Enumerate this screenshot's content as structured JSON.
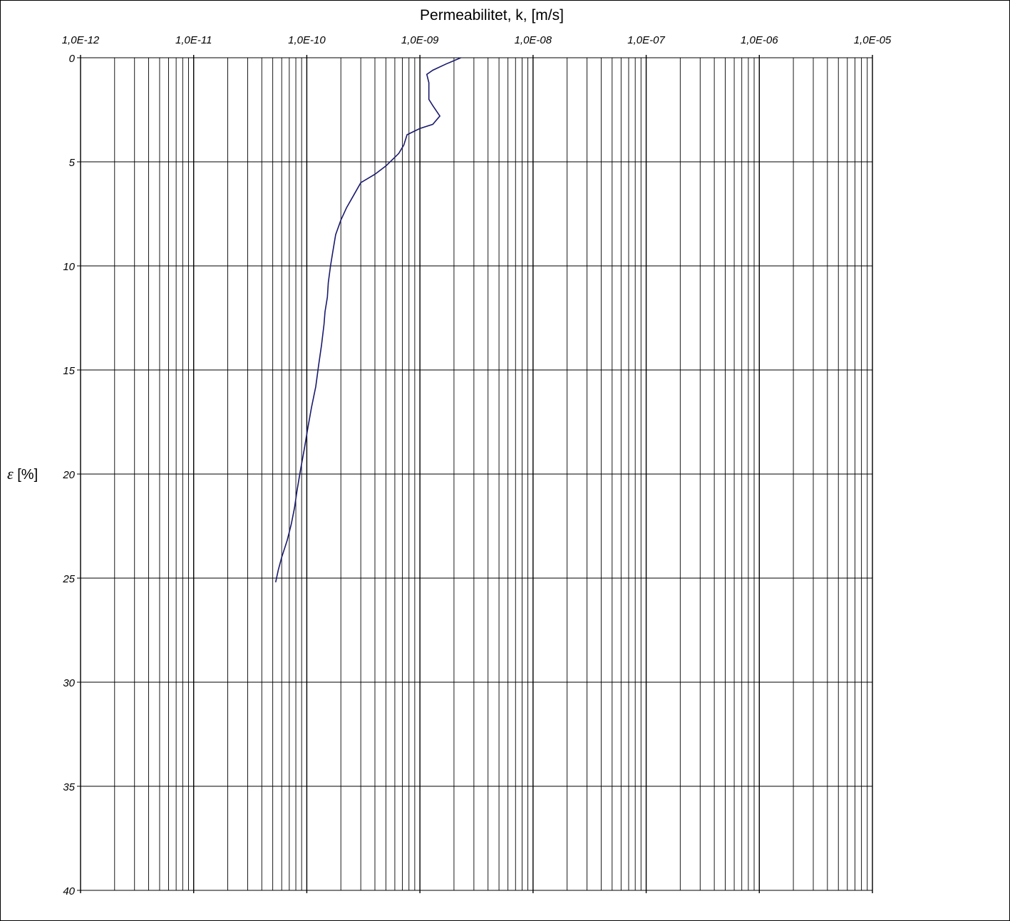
{
  "chart_data": {
    "type": "line",
    "title": "Permeabilitet, k, [m/s]",
    "ylabel_symbol": "ε",
    "ylabel_unit": "[%]",
    "x_scale": "log",
    "x_axis_position": "top",
    "y_inverted": true,
    "xlim": [
      1e-12,
      1e-05
    ],
    "ylim": [
      0,
      40
    ],
    "x_ticks": [
      {
        "value": 1e-12,
        "label": "1,0E-12"
      },
      {
        "value": 1e-11,
        "label": "1,0E-11"
      },
      {
        "value": 1e-10,
        "label": "1,0E-10"
      },
      {
        "value": 1e-09,
        "label": "1,0E-09"
      },
      {
        "value": 1e-08,
        "label": "1,0E-08"
      },
      {
        "value": 1e-07,
        "label": "1,0E-07"
      },
      {
        "value": 1e-06,
        "label": "1,0E-06"
      },
      {
        "value": 1e-05,
        "label": "1,0E-05"
      }
    ],
    "y_ticks": [
      {
        "value": 0,
        "label": "0"
      },
      {
        "value": 5,
        "label": "5"
      },
      {
        "value": 10,
        "label": "10"
      },
      {
        "value": 15,
        "label": "15"
      },
      {
        "value": 20,
        "label": "20"
      },
      {
        "value": 25,
        "label": "25"
      },
      {
        "value": 30,
        "label": "30"
      },
      {
        "value": 35,
        "label": "35"
      },
      {
        "value": 40,
        "label": "40"
      }
    ],
    "grid": true,
    "line_color": "#1a1a6e",
    "series": [
      {
        "x": [
          2.3e-09,
          1.7e-09,
          1.3e-09,
          1.15e-09,
          1.2e-09,
          1.2e-09,
          1.3e-09,
          1.5e-09,
          1.3e-09,
          1e-09,
          7.7e-10,
          7.2e-10,
          6.5e-10,
          5e-10,
          4e-10,
          3e-10,
          2.6e-10,
          2.25e-10,
          2e-10,
          1.8e-10,
          1.7e-10,
          1.62e-10,
          1.55e-10,
          1.52e-10,
          1.45e-10,
          1.42e-10,
          1.35e-10,
          1.27e-10,
          1.2e-10,
          1.1e-10,
          1.02e-10,
          9.5e-11,
          8.8e-11,
          8.2e-11,
          7.8e-11,
          7.3e-11,
          6.7e-11,
          6e-11,
          5.6e-11,
          5.3e-11
        ],
        "y": [
          0,
          0.3,
          0.6,
          0.8,
          1.2,
          2.0,
          2.3,
          2.8,
          3.2,
          3.4,
          3.7,
          4.2,
          4.6,
          5.2,
          5.6,
          6.0,
          6.6,
          7.2,
          7.8,
          8.5,
          9.3,
          10.0,
          10.8,
          11.5,
          12.2,
          12.8,
          13.8,
          14.8,
          15.8,
          16.8,
          17.8,
          18.8,
          19.8,
          20.8,
          21.6,
          22.4,
          23.2,
          24.0,
          24.6,
          25.2
        ]
      }
    ]
  }
}
